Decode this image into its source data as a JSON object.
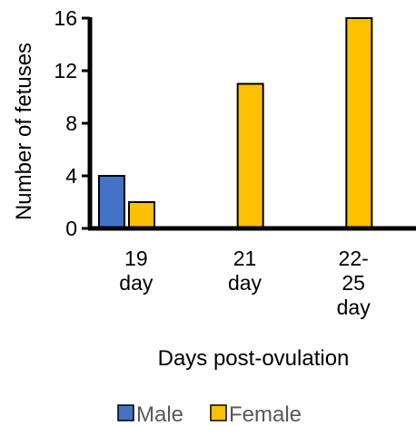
{
  "chart_data": {
    "type": "bar",
    "categories": [
      [
        "19",
        "day"
      ],
      [
        "21",
        "day"
      ],
      [
        "22-",
        "25",
        "day"
      ]
    ],
    "series": [
      {
        "name": "Male",
        "values": [
          4,
          0,
          0
        ],
        "color": "#4472C4"
      },
      {
        "name": "Female",
        "values": [
          2,
          11,
          16
        ],
        "color": "#FFC000"
      }
    ],
    "ylim": [
      0,
      16
    ],
    "yticks": [
      0,
      4,
      8,
      12,
      16
    ],
    "xlabel": "Days post-ovulation",
    "ylabel": "Number of fetuses",
    "grid": false,
    "legend_position": "bottom"
  }
}
